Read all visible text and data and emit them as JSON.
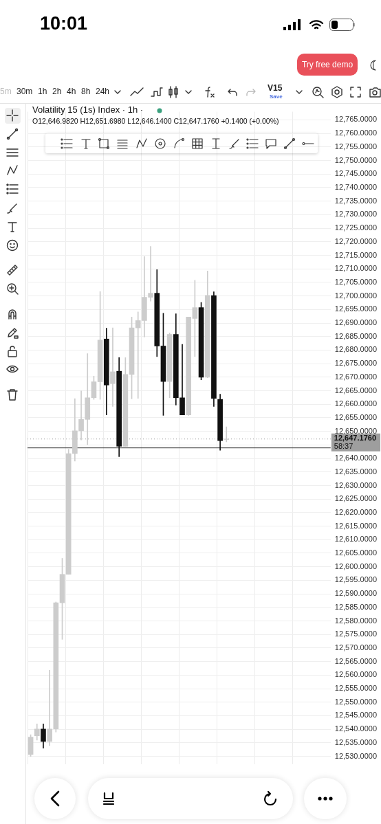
{
  "chart_data": {
    "type": "candlestick",
    "title": "Volatility 15 (1s) Index · 1h ·",
    "subtitle": "O12,646.9820 H12,651.6980 L12,646.1400 C12,647.1760 +0.1400 (+0.00%)",
    "categories": [
      null,
      null,
      null,
      null,
      null,
      null,
      null,
      null,
      null,
      null,
      null,
      null,
      null,
      null,
      null,
      null,
      null,
      null,
      null,
      null,
      null,
      null,
      null,
      null,
      null,
      null,
      null,
      null,
      null,
      null,
      null,
      null,
      null,
      null,
      null,
      null,
      null,
      null,
      null,
      null,
      null,
      null,
      null,
      null,
      null,
      null,
      null,
      null
    ],
    "ohlc": [
      [
        12530.7,
        12538,
        12530,
        12537.1
      ],
      [
        12537.6,
        12542,
        12536,
        12540.1
      ],
      [
        12540.1,
        12542,
        12533,
        12535.5
      ],
      [
        12535.5,
        12561.8,
        12534,
        12540.1
      ],
      [
        12540.1,
        12587,
        12539,
        12586.7
      ],
      [
        12586.7,
        12603.1,
        12573.2,
        12597.2
      ],
      [
        12597.2,
        12643.4,
        12597.2,
        12641.8
      ],
      [
        12641.8,
        12662.1,
        12639.0,
        12650.2
      ],
      [
        12650.2,
        12664.9,
        12646.8,
        12654.4
      ],
      [
        12654.4,
        12678.7,
        12645.1,
        12662.4
      ],
      [
        12662.4,
        12670.4,
        12661.8,
        12668.3
      ],
      [
        12668.3,
        12701.6,
        12661.8,
        12683.7
      ],
      [
        12684.1,
        12688.1,
        12656.1,
        12667.1
      ],
      [
        12667.6,
        12688.2,
        12659.2,
        12672.0
      ],
      [
        12672.2,
        12677.2,
        12640.7,
        12644.5
      ],
      [
        12644.5,
        12677.2,
        12644.5,
        12671.0
      ],
      [
        12671.0,
        12692.2,
        12662.0,
        12688.2
      ],
      [
        12688.2,
        12694.1,
        12662.2,
        12690.9
      ],
      [
        12690.9,
        12714.5,
        12684.8,
        12699.5
      ],
      [
        12699.5,
        12718.3,
        12698.1,
        12701.0
      ],
      [
        12701.0,
        12709.7,
        12677.6,
        12681.5
      ],
      [
        12681.5,
        12693.6,
        12655.9,
        12668.4
      ],
      [
        12668.4,
        12686.3,
        12662.4,
        12685.8
      ],
      [
        12685.8,
        12693.4,
        12659.7,
        12662.4
      ],
      [
        12662.4,
        12682.1,
        12656.1,
        12656.1
      ],
      [
        12656.1,
        12692.2,
        12655.9,
        12692.2
      ],
      [
        12691.7,
        12705.8,
        12677.6,
        12695.7
      ],
      [
        12695.7,
        12697.6,
        12669.0,
        12670.0
      ],
      [
        12670.0,
        12709.2,
        12669.8,
        12700.2
      ],
      [
        12700.1,
        12701.5,
        12659.2,
        12662.2
      ],
      [
        12661.8,
        12663.7,
        12643.0,
        12646.6
      ],
      [
        12646.982,
        12651.698,
        12646.14,
        12647.176
      ],
      null,
      null,
      null,
      null,
      null,
      null,
      null,
      null,
      null,
      null,
      null,
      null,
      null,
      null,
      null,
      null
    ],
    "colors": [
      "#cccccc",
      "#cccccc",
      "#111111",
      "#cccccc",
      "#cccccc",
      "#cccccc",
      "#cccccc",
      "#cccccc",
      "#cccccc",
      "#cccccc",
      "#cccccc",
      "#cccccc",
      "#111111",
      "#cccccc",
      "#111111",
      "#cccccc",
      "#cccccc",
      "#cccccc",
      "#cccccc",
      "#cccccc",
      "#111111",
      "#111111",
      "#cccccc",
      "#111111",
      "#111111",
      "#cccccc",
      "#cccccc",
      "#111111",
      "#cccccc",
      "#111111",
      "#111111",
      "#cccccc",
      null,
      null,
      null,
      null,
      null,
      null,
      null,
      null,
      null,
      null,
      null,
      null,
      null,
      null,
      null,
      null
    ],
    "ylim": [
      12527,
      12768
    ],
    "yticks": [
      {
        "value": 12530,
        "label": "12,530.0000"
      },
      {
        "value": 12535,
        "label": "12,535.0000"
      },
      {
        "value": 12540,
        "label": "12,540.0000"
      },
      {
        "value": 12545,
        "label": "12,545.0000"
      },
      {
        "value": 12550,
        "label": "12,550.0000"
      },
      {
        "value": 12555,
        "label": "12,555.0000"
      },
      {
        "value": 12560,
        "label": "12,560.0000"
      },
      {
        "value": 12565,
        "label": "12,565.0000"
      },
      {
        "value": 12570,
        "label": "12,570.0000"
      },
      {
        "value": 12575,
        "label": "12,575.0000"
      },
      {
        "value": 12580,
        "label": "12,580.0000"
      },
      {
        "value": 12585,
        "label": "12,585.0000"
      },
      {
        "value": 12590,
        "label": "12,590.0000"
      },
      {
        "value": 12595,
        "label": "12,595.0000"
      },
      {
        "value": 12600,
        "label": "12,600.0000"
      },
      {
        "value": 12605,
        "label": "12,605.0000"
      },
      {
        "value": 12610,
        "label": "12,610.0000"
      },
      {
        "value": 12615,
        "label": "12,615.0000"
      },
      {
        "value": 12620,
        "label": "12,620.0000"
      },
      {
        "value": 12625,
        "label": "12,625.0000"
      },
      {
        "value": 12630,
        "label": "12,630.0000"
      },
      {
        "value": 12635,
        "label": "12,635.0000"
      },
      {
        "value": 12640,
        "label": "12,640.0000"
      },
      {
        "value": 12645,
        "label": null
      },
      {
        "value": 12650,
        "label": "12,650.0000"
      },
      {
        "value": 12655,
        "label": "12,655.0000"
      },
      {
        "value": 12660,
        "label": "12,660.0000"
      },
      {
        "value": 12665,
        "label": "12,665.0000"
      },
      {
        "value": 12670,
        "label": "12,670.0000"
      },
      {
        "value": 12675,
        "label": "12,675.0000"
      },
      {
        "value": 12680,
        "label": "12,680.0000"
      },
      {
        "value": 12685,
        "label": "12,685.0000"
      },
      {
        "value": 12690,
        "label": "12,690.0000"
      },
      {
        "value": 12695,
        "label": "12,695.0000"
      },
      {
        "value": 12700,
        "label": "12,700.0000"
      },
      {
        "value": 12705,
        "label": "12,705.0000"
      },
      {
        "value": 12710,
        "label": "12,710.0000"
      },
      {
        "value": 12715,
        "label": "12,715.0000"
      },
      {
        "value": 12720,
        "label": "12,720.0000"
      },
      {
        "value": 12725,
        "label": "12,725.0000"
      },
      {
        "value": 12730,
        "label": "12,730.0000"
      },
      {
        "value": 12735,
        "label": "12,735.0000"
      },
      {
        "value": 12740,
        "label": "12,740.0000"
      },
      {
        "value": 12745,
        "label": "12,745.0000"
      },
      {
        "value": 12750,
        "label": "12,750.0000"
      },
      {
        "value": 12755,
        "label": "12,755.0000"
      },
      {
        "value": 12760,
        "label": "12,760.0000"
      },
      {
        "value": 12765,
        "label": "12,765.0000"
      }
    ],
    "tick_labels": "y",
    "grid": true,
    "ref_lines": [
      {
        "axis": "y",
        "value": 12643.9,
        "color": "#333333"
      },
      {
        "axis": "y",
        "value": 12647.176,
        "label": "12,647.1760",
        "color": "#9e9e9e",
        "line_style": "dotted"
      }
    ],
    "annotations": [
      "10:01",
      "Try free demo",
      "5m",
      "30m",
      "1h",
      "2h",
      "4h",
      "8h",
      "24h",
      "V15",
      "Save",
      "58:37"
    ]
  }
}
